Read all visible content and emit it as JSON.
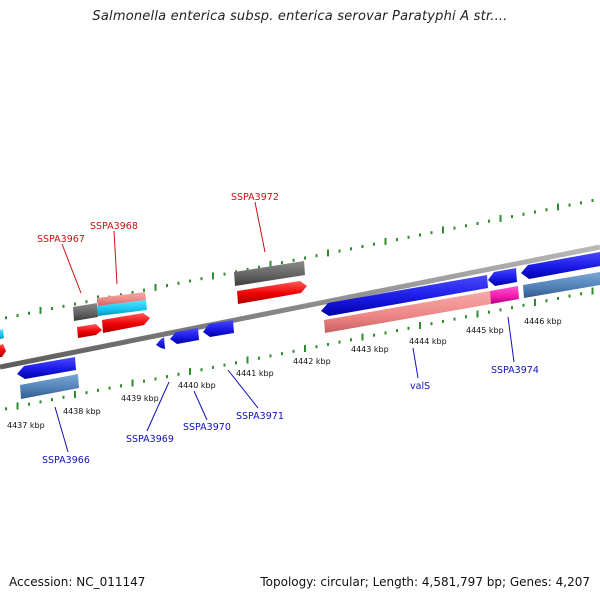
{
  "title": "Salmonella enterica subsp. enterica serovar Paratyphi A str....",
  "footer": {
    "accession": "Accession: NC_011147",
    "summary": "Topology: circular; Length: 4,581,797 bp; Genes: 4,207"
  },
  "colors": {
    "backbone": "#8c8c8c",
    "tick": "#2e8b2e",
    "fwd_label": "#cc1111",
    "rev_label": "#1111bb"
  },
  "kbp_labels": [
    "4437 kbp",
    "4438 kbp",
    "4439 kbp",
    "4440 kbp",
    "4441 kbp",
    "4442 kbp",
    "4443 kbp",
    "4444 kbp",
    "4445 kbp",
    "4446 kbp"
  ],
  "forward_genes": [
    {
      "label": "SSPA3967"
    },
    {
      "label": "SSPA3968"
    },
    {
      "label": "SSPA3972"
    }
  ],
  "reverse_genes": [
    {
      "label": "SSPA3966"
    },
    {
      "label": "SSPA3969"
    },
    {
      "label": "SSPA3970"
    },
    {
      "label": "SSPA3971"
    },
    {
      "label": "valS"
    },
    {
      "label": "SSPA3974"
    }
  ]
}
